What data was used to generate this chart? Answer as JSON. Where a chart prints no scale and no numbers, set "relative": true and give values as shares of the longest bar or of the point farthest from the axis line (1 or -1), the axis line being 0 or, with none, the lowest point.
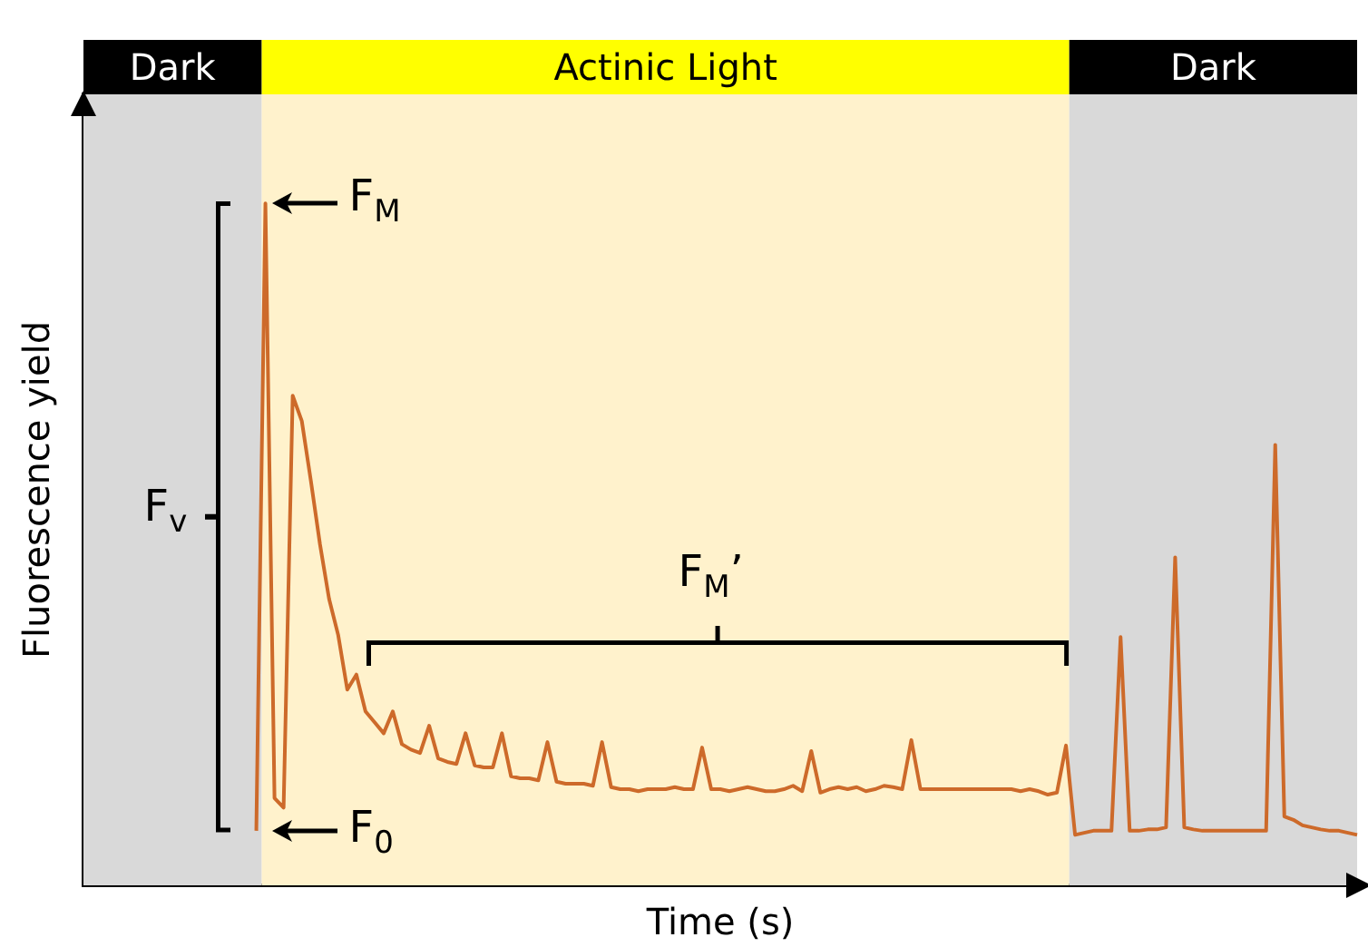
{
  "chart_data": {
    "type": "line",
    "relative": true,
    "xlabel": "Time (s)",
    "ylabel": "Fluorescence yield",
    "categories": [
      null,
      null,
      null,
      null,
      null,
      null,
      null,
      null,
      null,
      null,
      null,
      null,
      null,
      null,
      null,
      null,
      null,
      null,
      null,
      null,
      null,
      null,
      null,
      null,
      null,
      null,
      null,
      null,
      null,
      null,
      null,
      null,
      null,
      null,
      null,
      null,
      null,
      null,
      null,
      null,
      null,
      null,
      null,
      null,
      null,
      null,
      null,
      null,
      null,
      null,
      null,
      null,
      null,
      null,
      null,
      null,
      null,
      null,
      null,
      null,
      null,
      null,
      null,
      null,
      null,
      null,
      null,
      null,
      null,
      null,
      null,
      null,
      null,
      null,
      null,
      null,
      null,
      null,
      null,
      null,
      null,
      null,
      null,
      null,
      null,
      null,
      null,
      null,
      null,
      null,
      null,
      null,
      null,
      null,
      null,
      null,
      null,
      null,
      null,
      null,
      null,
      null,
      null,
      null,
      null,
      null,
      null,
      null,
      null,
      null,
      null,
      null,
      null,
      null,
      null,
      null,
      null,
      null,
      null,
      null,
      null,
      null,
      null,
      null,
      null,
      null,
      null,
      null,
      null,
      null,
      null,
      null,
      null,
      null,
      null,
      null,
      null,
      null,
      null,
      null,
      null
    ],
    "series": [
      {
        "color": "#cd6a2a",
        "values": [
          null,
          null,
          null,
          null,
          null,
          null,
          null,
          null,
          null,
          null,
          null,
          null,
          null,
          null,
          null,
          null,
          null,
          null,
          null,
          0.08,
          1.0,
          0.128,
          0.114,
          0.718,
          0.681,
          0.593,
          0.5,
          0.42,
          0.367,
          0.287,
          0.309,
          0.255,
          0.239,
          0.223,
          0.255,
          0.207,
          0.199,
          0.194,
          0.234,
          0.186,
          0.181,
          0.178,
          0.223,
          0.176,
          0.173,
          0.173,
          0.223,
          0.16,
          0.157,
          0.157,
          0.154,
          0.21,
          0.152,
          0.149,
          0.149,
          0.149,
          0.146,
          0.21,
          0.144,
          0.141,
          0.141,
          0.138,
          0.141,
          0.141,
          0.141,
          0.144,
          0.141,
          0.141,
          0.202,
          0.141,
          0.141,
          0.138,
          0.141,
          0.144,
          0.141,
          0.138,
          0.138,
          0.141,
          0.146,
          0.138,
          0.197,
          0.136,
          0.141,
          0.144,
          0.141,
          0.144,
          0.138,
          0.141,
          0.146,
          0.144,
          0.141,
          0.213,
          0.141,
          0.141,
          0.141,
          0.141,
          0.141,
          0.141,
          0.141,
          0.141,
          0.141,
          0.141,
          0.141,
          0.138,
          0.141,
          0.138,
          0.133,
          0.136,
          0.205,
          0.074,
          0.077,
          0.08,
          0.08,
          0.08,
          0.364,
          0.08,
          0.08,
          0.082,
          0.082,
          0.085,
          0.481,
          0.085,
          0.082,
          0.08,
          0.08,
          0.08,
          0.08,
          0.08,
          0.08,
          0.08,
          0.08,
          0.646,
          0.101,
          0.096,
          0.088,
          0.085,
          0.082,
          0.08,
          0.08,
          0.077,
          0.074
        ]
      }
    ],
    "annotations": [
      "F$_{M}$",
      "F$_{0}$",
      "F$_{v}$",
      "F$_{M}$’",
      "Dark",
      "Actinic Light",
      "Dark"
    ]
  }
}
